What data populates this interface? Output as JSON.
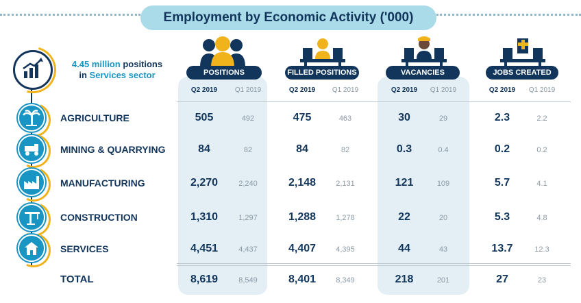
{
  "title": "Employment by Economic Activity ('000)",
  "callout": {
    "highlight1": "4.45 million",
    "text1": "positions",
    "text2": "in",
    "highlight2": "Services sector"
  },
  "columns": [
    {
      "label": "POSITIONS",
      "q2": "Q2 2019",
      "q1": "Q1 2019"
    },
    {
      "label": "FILLED POSITIONS",
      "q2": "Q2 2019",
      "q1": "Q1 2019"
    },
    {
      "label": "VACANCIES",
      "q2": "Q2 2019",
      "q1": "Q1 2019"
    },
    {
      "label": "JOBS CREATED",
      "q2": "Q2 2019",
      "q1": "Q1 2019"
    }
  ],
  "rows": [
    {
      "label": "AGRICULTURE",
      "icon": "palm-tree-icon",
      "values": [
        [
          "505",
          "492"
        ],
        [
          "475",
          "463"
        ],
        [
          "30",
          "29"
        ],
        [
          "2.3",
          "2.2"
        ]
      ]
    },
    {
      "label": "MINING & QUARRYING",
      "icon": "mining-truck-icon",
      "values": [
        [
          "84",
          "82"
        ],
        [
          "84",
          "82"
        ],
        [
          "0.3",
          "0.4"
        ],
        [
          "0.2",
          "0.2"
        ]
      ]
    },
    {
      "label": "MANUFACTURING",
      "icon": "factory-icon",
      "values": [
        [
          "2,270",
          "2,240"
        ],
        [
          "2,148",
          "2,131"
        ],
        [
          "121",
          "109"
        ],
        [
          "5.7",
          "4.1"
        ]
      ]
    },
    {
      "label": "CONSTRUCTION",
      "icon": "crane-icon",
      "values": [
        [
          "1,310",
          "1,297"
        ],
        [
          "1,288",
          "1,278"
        ],
        [
          "22",
          "20"
        ],
        [
          "5.3",
          "4.8"
        ]
      ]
    },
    {
      "label": "SERVICES",
      "icon": "services-icon",
      "values": [
        [
          "4,451",
          "4,437"
        ],
        [
          "4,407",
          "4,395"
        ],
        [
          "44",
          "43"
        ],
        [
          "13.7",
          "12.3"
        ]
      ]
    }
  ],
  "total": {
    "label": "TOTAL",
    "values": [
      [
        "8,619",
        "8,549"
      ],
      [
        "8,401",
        "8,349"
      ],
      [
        "218",
        "201"
      ],
      [
        "27",
        "23"
      ]
    ]
  },
  "colors": {
    "navy": "#12355b",
    "blue": "#1995c4",
    "gold": "#f0b31c",
    "highlight": "#e3eef5",
    "grey": "#8a9aa5"
  }
}
